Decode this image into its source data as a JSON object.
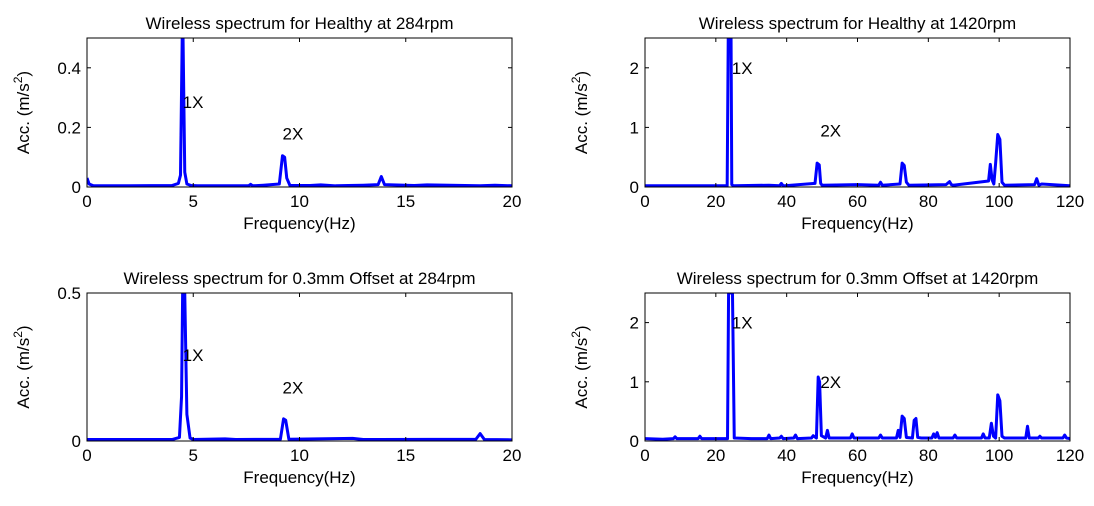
{
  "chart_data": [
    {
      "type": "line",
      "title": "Wireless spectrum for Healthy at 284rpm",
      "xlabel": "Frequency(Hz)",
      "ylabel": "Acc. (m/s",
      "ylabel_sup": "2",
      "ylabel_end": ")",
      "xlim": [
        0,
        20
      ],
      "ylim": [
        0,
        0.5
      ],
      "xticks": [
        0,
        5,
        10,
        15,
        20
      ],
      "yticks": [
        0,
        0.2,
        0.4
      ],
      "xtick_labels": [
        "0",
        "5",
        "10",
        "15",
        "20"
      ],
      "ytick_labels": [
        "0",
        "0.2",
        "0.4"
      ],
      "grid": false,
      "color": "#0000ff",
      "annotations": [
        {
          "text": "1X",
          "x": 4.5,
          "y": 0.285
        },
        {
          "text": "2X",
          "x": 9.2,
          "y": 0.18
        }
      ],
      "series": [
        {
          "x": [
            0,
            0.1,
            0.3,
            2,
            4.0,
            4.3,
            4.4,
            4.48,
            4.52,
            4.6,
            4.7,
            4.9,
            5.2,
            7.6,
            7.7,
            7.8,
            8.3,
            9.05,
            9.2,
            9.3,
            9.4,
            9.55,
            10.5,
            11.0,
            11.7,
            12.3,
            13.0,
            13.7,
            13.85,
            14.0,
            15.4,
            16.0,
            18.5,
            19.2,
            20.0
          ],
          "y": [
            0.03,
            0.01,
            0.004,
            0.004,
            0.005,
            0.012,
            0.04,
            0.5,
            0.5,
            0.05,
            0.01,
            0.005,
            0.004,
            0.004,
            0.009,
            0.004,
            0.006,
            0.01,
            0.105,
            0.1,
            0.03,
            0.005,
            0.005,
            0.007,
            0.004,
            0.005,
            0.006,
            0.008,
            0.035,
            0.008,
            0.005,
            0.007,
            0.004,
            0.006,
            0.004
          ]
        }
      ]
    },
    {
      "type": "line",
      "title": "Wireless spectrum for Healthy at 1420rpm",
      "xlabel": "Frequency(Hz)",
      "ylabel": "Acc. (m/s",
      "ylabel_sup": "2",
      "ylabel_end": ")",
      "xlim": [
        0,
        120
      ],
      "ylim": [
        0,
        2.5
      ],
      "xticks": [
        0,
        20,
        40,
        60,
        80,
        100,
        120
      ],
      "yticks": [
        0,
        1,
        2
      ],
      "xtick_labels": [
        "0",
        "20",
        "40",
        "60",
        "80",
        "100",
        "120"
      ],
      "ytick_labels": [
        "0",
        "1",
        "2"
      ],
      "grid": false,
      "color": "#0000ff",
      "annotations": [
        {
          "text": "1X",
          "x": 24.5,
          "y": 2.0
        },
        {
          "text": "2X",
          "x": 49.5,
          "y": 0.95
        }
      ],
      "series": [
        {
          "x": [
            0,
            10,
            23.2,
            23.5,
            23.8,
            24.0,
            24.3,
            24.5,
            25.0,
            35,
            38,
            38.5,
            39,
            48,
            48.6,
            49.2,
            49.6,
            50,
            60,
            66,
            66.5,
            67,
            72,
            72.6,
            73.2,
            73.8,
            74.5,
            85,
            86,
            86.5,
            87,
            97,
            97.5,
            98,
            98.5,
            99,
            99.6,
            100.2,
            100.8,
            101.5,
            110,
            110.6,
            111.2,
            112,
            120
          ],
          "y": [
            0.02,
            0.02,
            0.02,
            2.5,
            2.5,
            2.5,
            2.5,
            0.04,
            0.02,
            0.03,
            0.02,
            0.06,
            0.02,
            0.06,
            0.4,
            0.37,
            0.06,
            0.03,
            0.04,
            0.03,
            0.08,
            0.03,
            0.05,
            0.4,
            0.36,
            0.08,
            0.03,
            0.04,
            0.09,
            0.04,
            0.03,
            0.1,
            0.38,
            0.12,
            0.05,
            0.4,
            0.88,
            0.8,
            0.08,
            0.03,
            0.04,
            0.14,
            0.03,
            0.05,
            0.02
          ]
        }
      ]
    },
    {
      "type": "line",
      "title": "Wireless spectrum for 0.3mm Offset at 284rpm",
      "xlabel": "Frequency(Hz)",
      "ylabel": "Acc. (m/s",
      "ylabel_sup": "2",
      "ylabel_end": ")",
      "xlim": [
        0,
        20
      ],
      "ylim": [
        0,
        0.5
      ],
      "xticks": [
        0,
        5,
        10,
        15,
        20
      ],
      "yticks": [
        0,
        0.5
      ],
      "xtick_labels": [
        "0",
        "5",
        "10",
        "15",
        "20"
      ],
      "ytick_labels": [
        "0",
        "0.5"
      ],
      "grid": false,
      "color": "#0000ff",
      "annotations": [
        {
          "text": "1X",
          "x": 4.5,
          "y": 0.29
        },
        {
          "text": "2X",
          "x": 9.2,
          "y": 0.18
        }
      ],
      "series": [
        {
          "x": [
            0,
            4.0,
            4.35,
            4.45,
            4.5,
            4.6,
            4.7,
            4.85,
            5.0,
            6.5,
            7.0,
            9.1,
            9.25,
            9.35,
            9.5,
            12.5,
            13.0,
            18.3,
            18.5,
            18.7,
            20.0
          ],
          "y": [
            0.005,
            0.005,
            0.012,
            0.15,
            0.5,
            0.5,
            0.09,
            0.01,
            0.005,
            0.007,
            0.005,
            0.006,
            0.075,
            0.07,
            0.006,
            0.009,
            0.005,
            0.006,
            0.025,
            0.005,
            0.004
          ]
        }
      ]
    },
    {
      "type": "line",
      "title": "Wireless spectrum for 0.3mm Offset at 1420rpm",
      "xlabel": "Frequency(Hz)",
      "ylabel": "Acc. (m/s",
      "ylabel_sup": "2",
      "ylabel_end": ")",
      "xlim": [
        0,
        120
      ],
      "ylim": [
        0,
        2.5
      ],
      "xticks": [
        0,
        20,
        40,
        60,
        80,
        100,
        120
      ],
      "yticks": [
        0,
        1,
        2
      ],
      "xtick_labels": [
        "0",
        "20",
        "40",
        "60",
        "80",
        "100",
        "120"
      ],
      "ytick_labels": [
        "0",
        "1",
        "2"
      ],
      "grid": false,
      "color": "#0000ff",
      "annotations": [
        {
          "text": "1X",
          "x": 24.5,
          "y": 2.0
        },
        {
          "text": "2X",
          "x": 49.5,
          "y": 1.0
        }
      ],
      "series": [
        {
          "x": [
            0,
            5,
            8,
            8.5,
            9,
            15,
            15.5,
            16,
            23.3,
            23.6,
            24.0,
            24.4,
            24.7,
            25.2,
            30,
            34.5,
            35,
            35.5,
            38,
            38.5,
            39,
            42,
            42.5,
            43,
            47,
            47.5,
            48.4,
            48.9,
            49.3,
            49.8,
            51,
            51.5,
            52,
            58,
            58.5,
            59,
            66,
            66.5,
            67,
            71,
            71.5,
            72,
            72.6,
            73.2,
            73.8,
            75.5,
            76,
            76.5,
            77,
            78,
            81,
            81.5,
            82,
            82.5,
            83,
            84,
            87,
            87.5,
            88,
            95,
            95.5,
            96,
            97.2,
            97.8,
            98.4,
            99.0,
            99.6,
            100.2,
            100.8,
            101.5,
            107.5,
            108,
            108.5,
            111,
            111.5,
            112,
            118,
            118.5,
            119,
            120
          ],
          "y": [
            0.04,
            0.03,
            0.04,
            0.07,
            0.04,
            0.04,
            0.08,
            0.04,
            0.04,
            2.5,
            2.5,
            2.5,
            2.5,
            0.05,
            0.04,
            0.04,
            0.1,
            0.04,
            0.05,
            0.08,
            0.04,
            0.05,
            0.1,
            0.04,
            0.05,
            0.09,
            0.05,
            1.08,
            1.0,
            0.09,
            0.05,
            0.18,
            0.05,
            0.05,
            0.12,
            0.05,
            0.05,
            0.1,
            0.05,
            0.05,
            0.18,
            0.06,
            0.42,
            0.38,
            0.06,
            0.05,
            0.35,
            0.38,
            0.06,
            0.05,
            0.05,
            0.12,
            0.06,
            0.14,
            0.05,
            0.05,
            0.05,
            0.1,
            0.05,
            0.05,
            0.12,
            0.05,
            0.05,
            0.3,
            0.08,
            0.05,
            0.78,
            0.68,
            0.08,
            0.05,
            0.05,
            0.25,
            0.05,
            0.05,
            0.08,
            0.05,
            0.05,
            0.1,
            0.05,
            0.04
          ]
        }
      ]
    }
  ]
}
